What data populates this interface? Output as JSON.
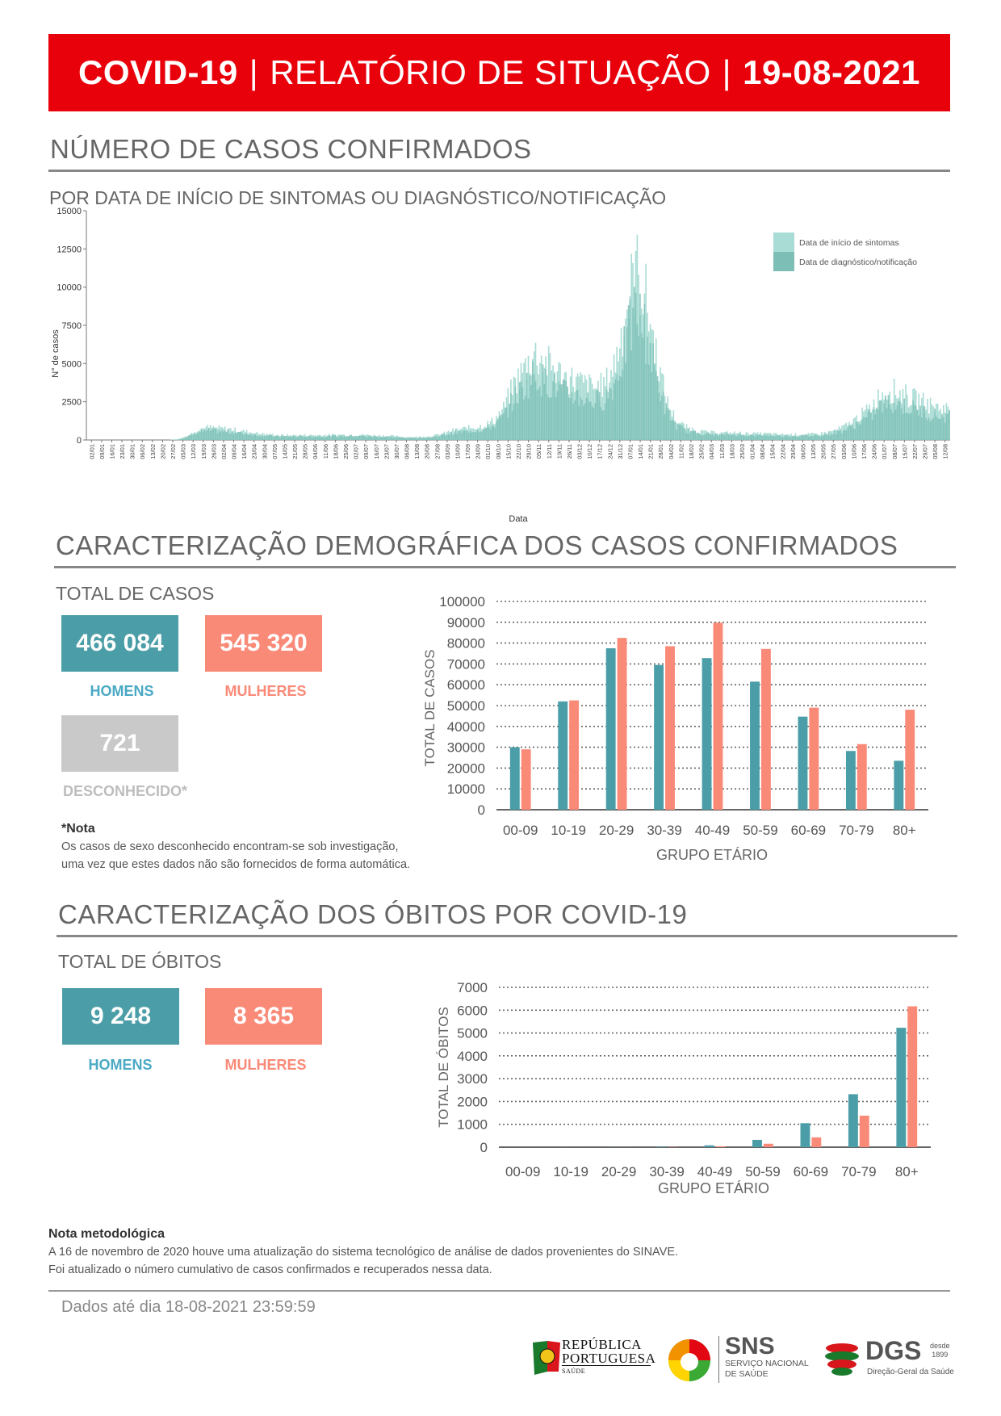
{
  "header": {
    "title_a": "COVID-19",
    "sep1": "|",
    "title_b": "RELATÓRIO DE SITUAÇÃO",
    "sep2": "|",
    "date": "19-08-2021"
  },
  "cases_section": {
    "title": "NÚMERO DE CASOS CONFIRMADOS",
    "subtitle": "POR DATA DE INÍCIO DE SINTOMAS OU DIAGNÓSTICO/NOTIFICAÇÃO"
  },
  "demo_section": {
    "title": "CARACTERIZAÇÃO DEMOGRÁFICA DOS CASOS CONFIRMADOS",
    "total_label": "TOTAL DE CASOS",
    "men_value": "466 084",
    "men_label": "HOMENS",
    "women_value": "545 320",
    "women_label": "MULHERES",
    "unknown_value": "721",
    "unknown_label": "DESCONHECIDO*",
    "note_title": "*Nota",
    "note_line1": "Os casos de sexo desconhecido encontram-se sob investigação,",
    "note_line2": "uma vez que estes dados não são fornecidos de forma automática."
  },
  "deaths_section": {
    "title": "CARACTERIZAÇÃO DOS ÓBITOS POR COVID-19",
    "total_label": "TOTAL DE ÓBITOS",
    "men_value": "9 248",
    "men_label": "HOMENS",
    "women_value": "8 365",
    "women_label": "MULHERES"
  },
  "method_note": {
    "title": "Nota metodológica",
    "line1": "A 16 de novembro de 2020 houve uma atualização do sistema tecnológico de análise de dados provenientes do SINAVE.",
    "line2": "Foi atualizado o número cumulativo de casos confirmados e recuperados nessa data."
  },
  "footer": {
    "data_until": "Dados até dia 18-08-2021 23:59:59",
    "logo_rep_1": "REPÚBLICA",
    "logo_rep_2": "PORTUGUESA",
    "logo_rep_3": "SAÚDE",
    "logo_sns_1": "SNS",
    "logo_sns_2": "SERVIÇO NACIONAL",
    "logo_sns_3": "DE SAÚDE",
    "logo_dgs_1": "DGS",
    "logo_dgs_2": "desde",
    "logo_dgs_3": "1899",
    "logo_dgs_4": "Direção-Geral da Saúde"
  },
  "colors": {
    "banner": "#e8000b",
    "teal": "#4b9ea7",
    "salmon": "#fa8a78",
    "onset_light": "#a9dcd4",
    "diag_mid": "#7dbfb6"
  },
  "chart_data": [
    {
      "type": "bar",
      "id": "daily-cases",
      "xlabel": "Data",
      "ylabel": "N° de casos",
      "ylim": [
        0,
        15000
      ],
      "yticks": [
        0,
        2500,
        5000,
        7500,
        10000,
        12500,
        15000
      ],
      "legend_position": "top-right",
      "series": [
        {
          "name": "Data de início de sintomas",
          "color": "#a9dcd4"
        },
        {
          "name": "Data de diagnóstico/notificação",
          "color": "#7dbfb6"
        }
      ],
      "x_ticks": [
        "02/01",
        "09/01",
        "16/01",
        "23/01",
        "30/01",
        "06/02",
        "13/02",
        "20/02",
        "27/02",
        "05/03",
        "12/03",
        "19/03",
        "26/03",
        "02/04",
        "09/04",
        "16/04",
        "23/04",
        "30/04",
        "07/05",
        "14/05",
        "21/05",
        "28/05",
        "04/06",
        "11/06",
        "18/06",
        "25/06",
        "02/07",
        "09/07",
        "16/07",
        "23/07",
        "30/07",
        "06/08",
        "13/08",
        "20/08",
        "27/08",
        "03/09",
        "10/09",
        "17/09",
        "24/09",
        "01/10",
        "08/10",
        "15/10",
        "22/10",
        "29/10",
        "05/11",
        "12/11",
        "19/11",
        "26/11",
        "03/12",
        "10/12",
        "17/12",
        "24/12",
        "31/12",
        "07/01",
        "14/01",
        "21/01",
        "28/01",
        "04/02",
        "11/02",
        "18/02",
        "25/02",
        "04/03",
        "11/03",
        "18/03",
        "25/03",
        "01/04",
        "08/04",
        "15/04",
        "22/04",
        "29/04",
        "06/05",
        "13/05",
        "20/05",
        "27/05",
        "03/06",
        "10/06",
        "17/06",
        "24/06",
        "01/07",
        "08/07",
        "15/07",
        "22/07",
        "29/07",
        "05/08",
        "12/08"
      ],
      "weekly_level_approx": [
        0,
        0,
        0,
        0,
        0,
        0,
        0,
        0,
        0,
        50,
        300,
        700,
        800,
        750,
        700,
        600,
        500,
        400,
        350,
        300,
        300,
        300,
        300,
        300,
        320,
        330,
        330,
        330,
        300,
        280,
        250,
        200,
        180,
        200,
        250,
        400,
        600,
        700,
        800,
        900,
        1200,
        2000,
        3500,
        4500,
        5500,
        5000,
        4500,
        4000,
        3800,
        3500,
        3300,
        3500,
        5000,
        8000,
        11000,
        9000,
        5500,
        2500,
        1200,
        800,
        600,
        500,
        450,
        450,
        450,
        400,
        400,
        400,
        350,
        350,
        350,
        350,
        400,
        500,
        700,
        1000,
        1500,
        2000,
        2800,
        3200,
        3000,
        2700,
        2500,
        2200,
        2000
      ]
    },
    {
      "type": "bar",
      "id": "cases-by-age",
      "xlabel": "GRUPO ETÁRIO",
      "ylabel": "TOTAL DE CASOS",
      "ylim": [
        0,
        100000
      ],
      "yticks": [
        0,
        10000,
        20000,
        30000,
        40000,
        50000,
        60000,
        70000,
        80000,
        90000,
        100000
      ],
      "grid": true,
      "categories": [
        "00-09",
        "10-19",
        "20-29",
        "30-39",
        "40-49",
        "50-59",
        "60-69",
        "70-79",
        "80+"
      ],
      "series": [
        {
          "color": "#4b9ea7",
          "values": [
            30000,
            52000,
            77500,
            69500,
            72800,
            61500,
            44700,
            28200,
            23500
          ]
        },
        {
          "color": "#fa8a78",
          "values": [
            29000,
            52500,
            82500,
            78500,
            89800,
            77200,
            49000,
            31500,
            48000
          ]
        }
      ]
    },
    {
      "type": "bar",
      "id": "deaths-by-age",
      "xlabel": "GRUPO ETÁRIO",
      "ylabel": "TOTAL DE ÓBITOS",
      "ylim": [
        0,
        7000
      ],
      "yticks": [
        0,
        1000,
        2000,
        3000,
        4000,
        5000,
        6000,
        7000
      ],
      "grid": true,
      "categories": [
        "00-09",
        "10-19",
        "20-29",
        "30-39",
        "40-49",
        "50-59",
        "60-69",
        "70-79",
        "80+"
      ],
      "series": [
        {
          "color": "#4b9ea7",
          "values": [
            2,
            3,
            6,
            22,
            80,
            320,
            1050,
            2320,
            5230
          ]
        },
        {
          "color": "#fa8a78",
          "values": [
            1,
            1,
            3,
            12,
            40,
            150,
            430,
            1380,
            6170
          ]
        }
      ]
    }
  ]
}
